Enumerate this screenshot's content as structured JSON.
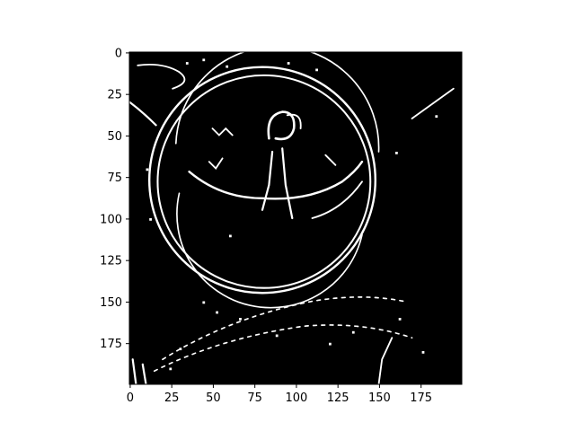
{
  "image": {
    "description_icon": "edge-detected-image",
    "colormap": "gray",
    "background_color": "#000000",
    "foreground_color": "#ffffff",
    "extent": {
      "x": [
        0,
        199
      ],
      "y": [
        0,
        199
      ]
    }
  },
  "axes": {
    "x_ticks": [
      {
        "value": 0,
        "label": "0"
      },
      {
        "value": 25,
        "label": "25"
      },
      {
        "value": 50,
        "label": "50"
      },
      {
        "value": 75,
        "label": "75"
      },
      {
        "value": 100,
        "label": "100"
      },
      {
        "value": 125,
        "label": "125"
      },
      {
        "value": 150,
        "label": "150"
      },
      {
        "value": 175,
        "label": "175"
      }
    ],
    "y_ticks": [
      {
        "value": 0,
        "label": "0"
      },
      {
        "value": 25,
        "label": "25"
      },
      {
        "value": 50,
        "label": "50"
      },
      {
        "value": 75,
        "label": "75"
      },
      {
        "value": 100,
        "label": "100"
      },
      {
        "value": 125,
        "label": "125"
      },
      {
        "value": 150,
        "label": "150"
      },
      {
        "value": 175,
        "label": "175"
      }
    ]
  }
}
